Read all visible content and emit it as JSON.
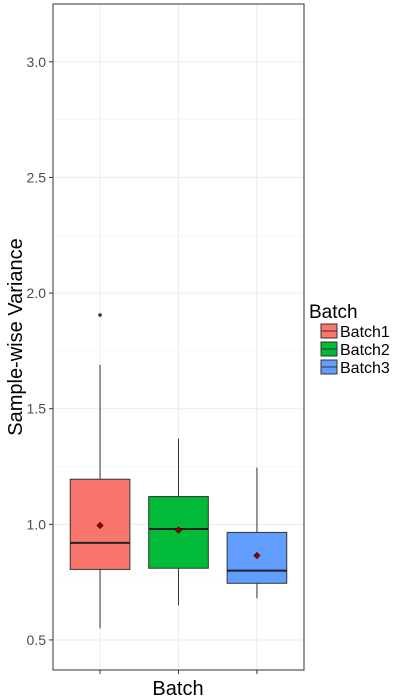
{
  "chart_data": {
    "type": "boxplot",
    "title": "",
    "xlabel": "Batch",
    "ylabel": "Sample-wise Variance",
    "ylim": [
      0.37,
      3.25
    ],
    "yticks": [
      0.5,
      1.0,
      1.5,
      2.0,
      2.5,
      3.0
    ],
    "ytick_labels": [
      "0.5",
      "1.0",
      "1.5",
      "2.0",
      "2.5",
      "3.0"
    ],
    "categories": [
      "Batch1",
      "Batch2",
      "Batch3"
    ],
    "grid": true,
    "legend": {
      "title": "Batch",
      "position": "right"
    },
    "series": [
      {
        "name": "Batch1",
        "color": "#F8766D",
        "whisker_low": 0.55,
        "q1": 0.805,
        "median": 0.92,
        "q3": 1.195,
        "whisker_high": 1.69,
        "mean": 0.995,
        "outliers": [
          1.905
        ]
      },
      {
        "name": "Batch2",
        "color": "#00BA38",
        "whisker_low": 0.65,
        "q1": 0.81,
        "median": 0.98,
        "q3": 1.12,
        "whisker_high": 1.37,
        "mean": 0.975,
        "outliers": []
      },
      {
        "name": "Batch3",
        "color": "#619CFF",
        "whisker_low": 0.68,
        "q1": 0.745,
        "median": 0.8,
        "q3": 0.965,
        "whisker_high": 1.245,
        "mean": 0.865,
        "outliers": []
      }
    ],
    "mean_marker_color": "#8B0000"
  }
}
